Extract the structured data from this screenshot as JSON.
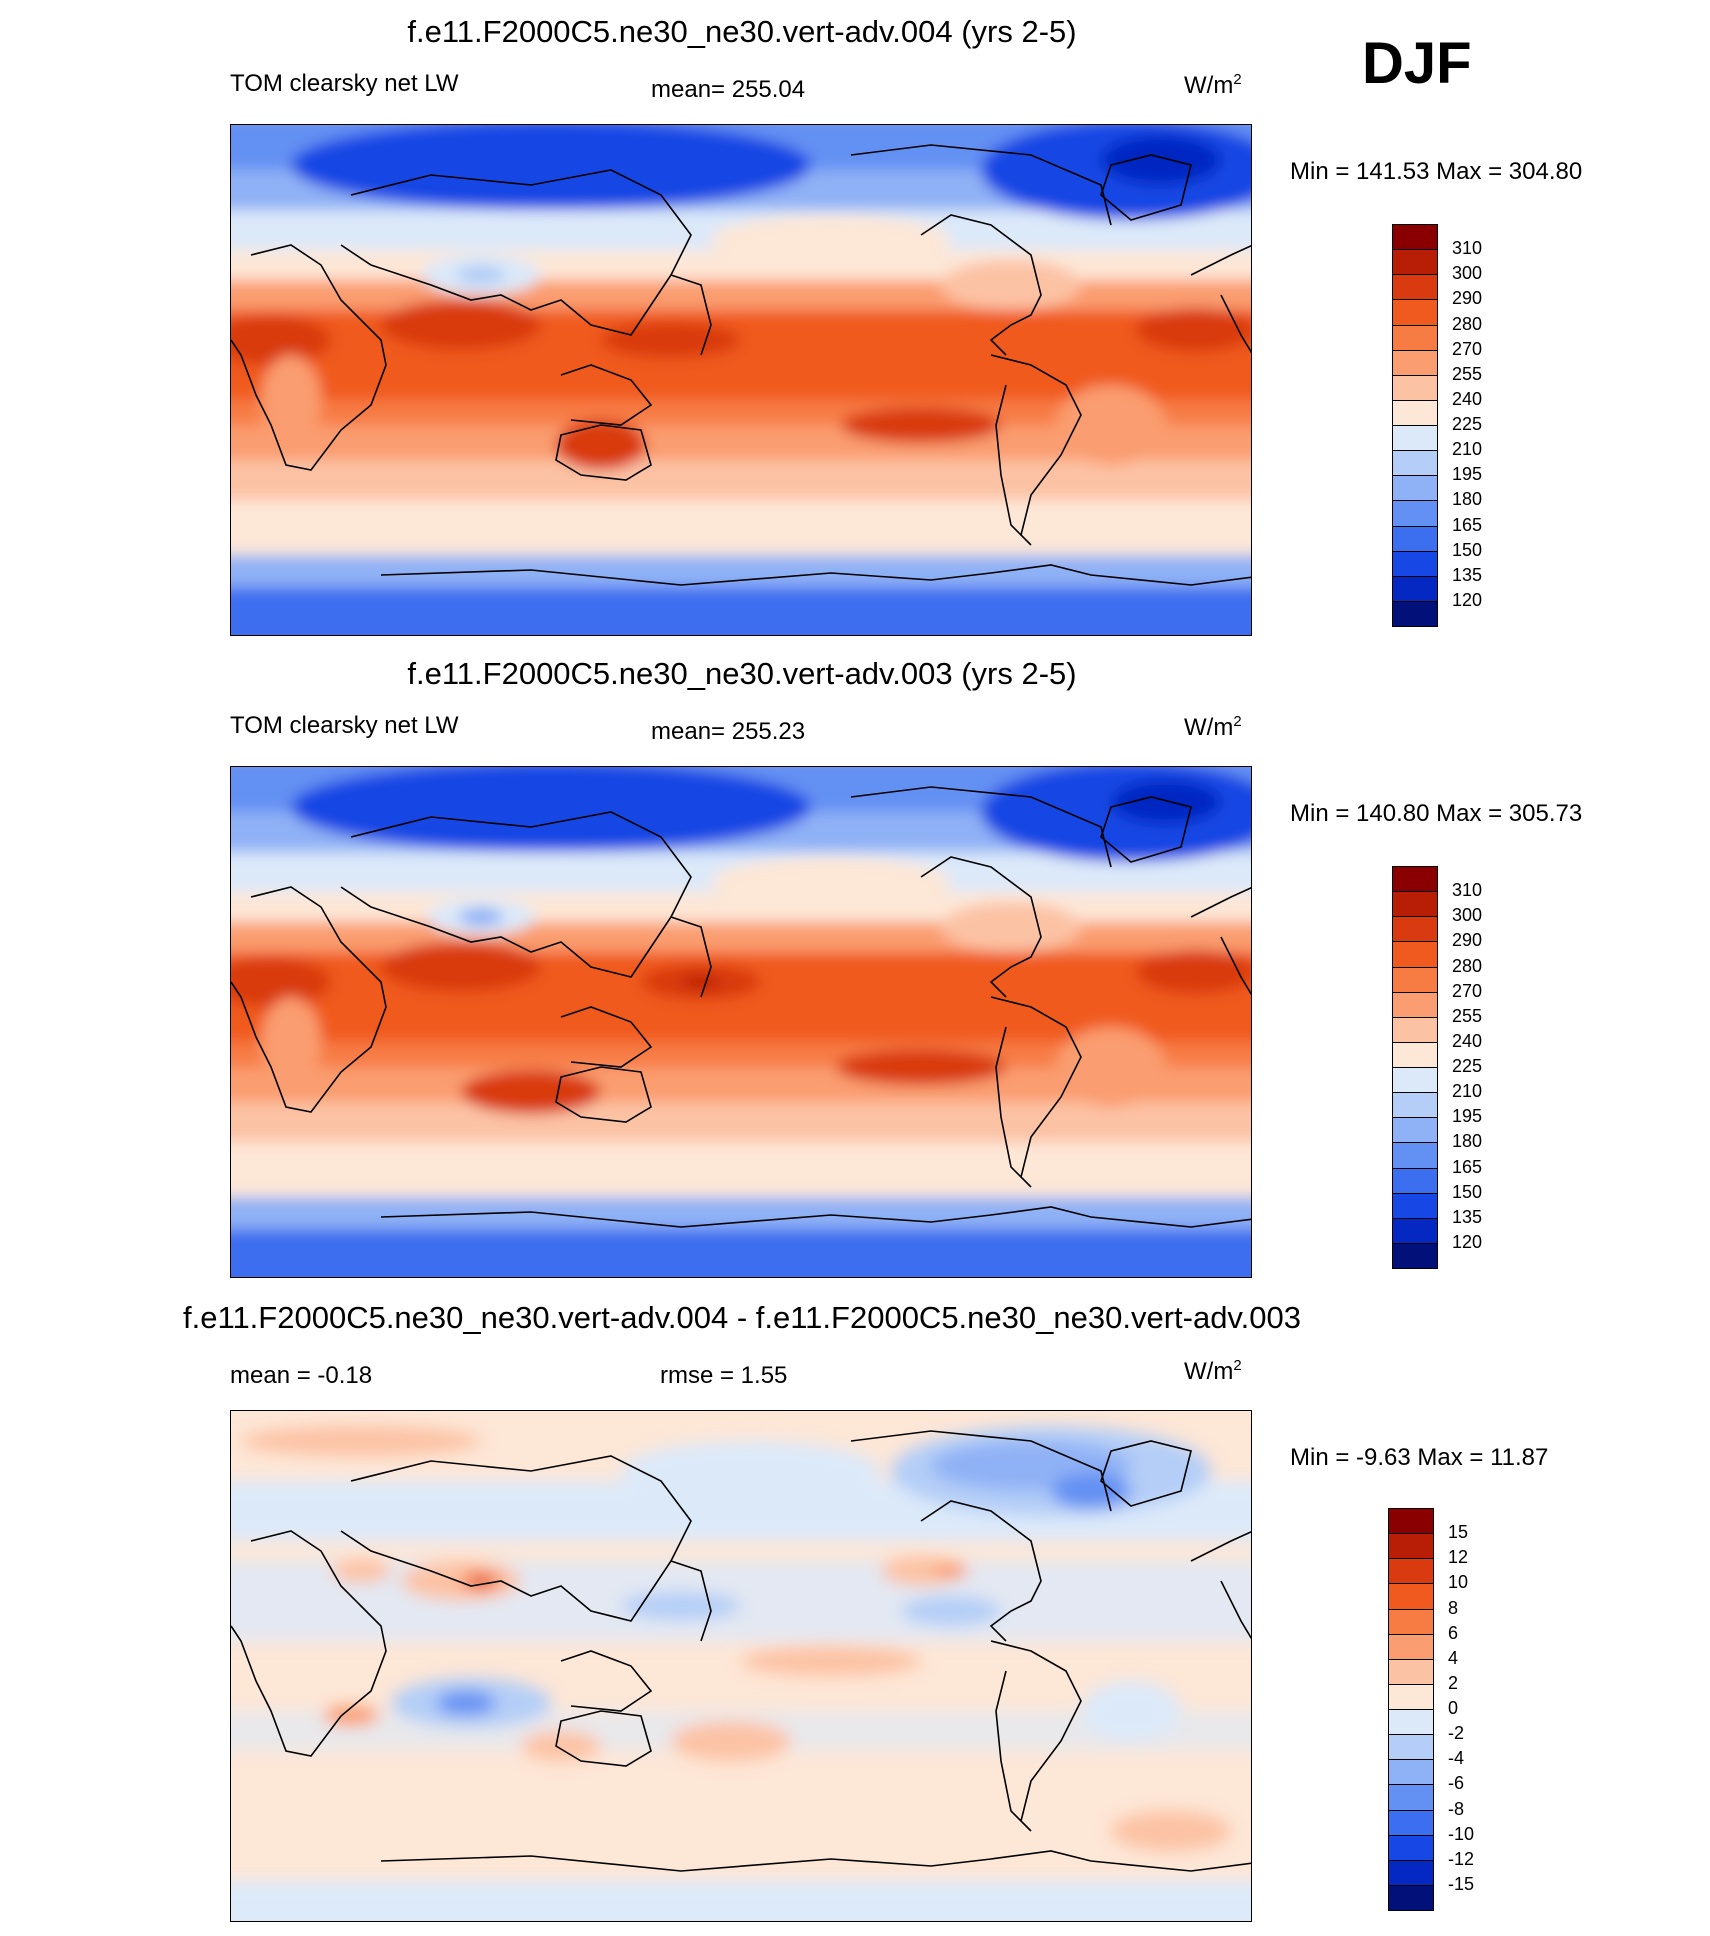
{
  "season": "DJF",
  "panels": [
    {
      "title": "f.e11.F2000C5.ne30_ne30.vert-adv.004 (yrs 2-5)",
      "left_label": "TOM clearsky net LW",
      "center_label": "mean= 255.04",
      "units": "W/m",
      "units_sup": "2",
      "minmax": "Min = 141.53 Max = 304.80"
    },
    {
      "title": "f.e11.F2000C5.ne30_ne30.vert-adv.003 (yrs 2-5)",
      "left_label": "TOM clearsky net LW",
      "center_label": "mean= 255.23",
      "units": "W/m",
      "units_sup": "2",
      "minmax": "Min = 140.80 Max = 305.73"
    },
    {
      "title": "f.e11.F2000C5.ne30_ne30.vert-adv.004 - f.e11.F2000C5.ne30_ne30.vert-adv.003",
      "left_label": "mean =  -0.18",
      "center_label": "rmse =   1.55",
      "units": "W/m",
      "units_sup": "2",
      "minmax": "Min =  -9.63 Max =  11.87"
    }
  ],
  "colorbars": {
    "field": {
      "levels": [
        "310",
        "300",
        "290",
        "280",
        "270",
        "255",
        "240",
        "225",
        "210",
        "195",
        "180",
        "165",
        "150",
        "135",
        "120"
      ],
      "colors": [
        "#8a0000",
        "#b81d06",
        "#d93a10",
        "#f05a1f",
        "#f77c44",
        "#fa9d70",
        "#fcc2a4",
        "#fde7d7",
        "#dce9f9",
        "#b4cef7",
        "#8fb1f5",
        "#6390f3",
        "#3c6ef0",
        "#1747e4",
        "#0628c2",
        "#02107a"
      ]
    },
    "diff": {
      "levels": [
        "15",
        "12",
        "10",
        "8",
        "6",
        "4",
        "2",
        "0",
        "-2",
        "-4",
        "-6",
        "-8",
        "-10",
        "-12",
        "-15"
      ],
      "colors": [
        "#8a0000",
        "#b81d06",
        "#d93a10",
        "#f05a1f",
        "#f77c44",
        "#fa9d70",
        "#fcc2a4",
        "#fde7d7",
        "#dce9f9",
        "#b4cef7",
        "#8fb1f5",
        "#6390f3",
        "#3c6ef0",
        "#1747e4",
        "#0628c2",
        "#02107a"
      ]
    }
  },
  "chart_data": [
    {
      "type": "heatmap",
      "title": "f.e11.F2000C5.ne30_ne30.vert-adv.004 (yrs 2-5)",
      "variable": "TOM clearsky net LW",
      "units": "W/m2",
      "mean": 255.04,
      "min": 141.53,
      "max": 304.8,
      "contour_levels": [
        120,
        135,
        150,
        165,
        180,
        195,
        210,
        225,
        240,
        255,
        270,
        280,
        290,
        300,
        310
      ],
      "lat_bands": [
        {
          "lat": 80,
          "value": 170
        },
        {
          "lat": 60,
          "value": 185
        },
        {
          "lat": 45,
          "value": 205
        },
        {
          "lat": 30,
          "value": 245
        },
        {
          "lat": 15,
          "value": 285
        },
        {
          "lat": 0,
          "value": 280
        },
        {
          "lat": -15,
          "value": 278
        },
        {
          "lat": -30,
          "value": 262
        },
        {
          "lat": -45,
          "value": 245
        },
        {
          "lat": -60,
          "value": 230
        },
        {
          "lat": -75,
          "value": 170
        }
      ]
    },
    {
      "type": "heatmap",
      "title": "f.e11.F2000C5.ne30_ne30.vert-adv.003 (yrs 2-5)",
      "variable": "TOM clearsky net LW",
      "units": "W/m2",
      "mean": 255.23,
      "min": 140.8,
      "max": 305.73,
      "contour_levels": [
        120,
        135,
        150,
        165,
        180,
        195,
        210,
        225,
        240,
        255,
        270,
        280,
        290,
        300,
        310
      ],
      "lat_bands": [
        {
          "lat": 80,
          "value": 170
        },
        {
          "lat": 60,
          "value": 185
        },
        {
          "lat": 45,
          "value": 205
        },
        {
          "lat": 30,
          "value": 245
        },
        {
          "lat": 15,
          "value": 286
        },
        {
          "lat": 0,
          "value": 281
        },
        {
          "lat": -15,
          "value": 279
        },
        {
          "lat": -30,
          "value": 262
        },
        {
          "lat": -45,
          "value": 245
        },
        {
          "lat": -60,
          "value": 230
        },
        {
          "lat": -75,
          "value": 170
        }
      ]
    },
    {
      "type": "heatmap",
      "title": "f.e11.F2000C5.ne30_ne30.vert-adv.004 - f.e11.F2000C5.ne30_ne30.vert-adv.003",
      "units": "W/m2",
      "mean": -0.18,
      "rmse": 1.55,
      "min": -9.63,
      "max": 11.87,
      "contour_levels": [
        -15,
        -12,
        -10,
        -8,
        -6,
        -4,
        -2,
        0,
        2,
        4,
        6,
        8,
        10,
        12,
        15
      ],
      "lat_bands": [
        {
          "lat": 80,
          "value": 1
        },
        {
          "lat": 60,
          "value": -3
        },
        {
          "lat": 45,
          "value": -1
        },
        {
          "lat": 30,
          "value": 1
        },
        {
          "lat": 15,
          "value": -1
        },
        {
          "lat": 0,
          "value": 0
        },
        {
          "lat": -15,
          "value": -1
        },
        {
          "lat": -30,
          "value": 1
        },
        {
          "lat": -45,
          "value": 1
        },
        {
          "lat": -60,
          "value": 1
        },
        {
          "lat": -75,
          "value": -1
        }
      ]
    }
  ]
}
